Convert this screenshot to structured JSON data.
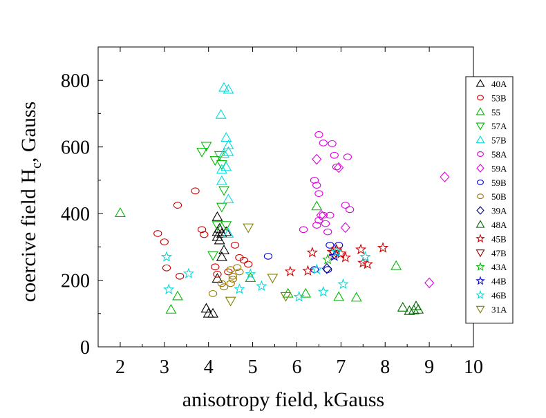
{
  "chart_data": {
    "type": "scatter",
    "xlabel": "anisotropy field, kGauss",
    "ylabel_main": "coercive field H",
    "ylabel_sub": "c",
    "ylabel_tail": ", Gauss",
    "xlim": [
      1.5,
      10
    ],
    "ylim": [
      0,
      900
    ],
    "xticks": [
      2,
      3,
      4,
      5,
      6,
      7,
      8,
      9,
      10
    ],
    "yticks": [
      0,
      200,
      400,
      600,
      800
    ],
    "grid": false,
    "legend_position": "right",
    "series": [
      {
        "name": "40A",
        "marker": "triangle-up",
        "color": "#000000",
        "points": [
          [
            4.2,
            390
          ],
          [
            4.25,
            355
          ],
          [
            4.2,
            345
          ],
          [
            4.3,
            340
          ],
          [
            4.4,
            345
          ],
          [
            4.2,
            330
          ],
          [
            4.25,
            320
          ],
          [
            4.35,
            290
          ],
          [
            4.3,
            270
          ],
          [
            4.2,
            205
          ],
          [
            3.95,
            115
          ],
          [
            4.0,
            100
          ],
          [
            4.1,
            100
          ]
        ]
      },
      {
        "name": "53B",
        "marker": "circle",
        "color": "#cc0000",
        "points": [
          [
            2.85,
            340
          ],
          [
            3.0,
            315
          ],
          [
            3.3,
            425
          ],
          [
            3.7,
            468
          ],
          [
            3.85,
            352
          ],
          [
            3.9,
            337
          ],
          [
            3.05,
            237
          ],
          [
            3.35,
            212
          ],
          [
            4.15,
            240
          ],
          [
            4.2,
            218
          ],
          [
            4.45,
            225
          ],
          [
            4.6,
            305
          ],
          [
            4.7,
            268
          ],
          [
            4.8,
            260
          ],
          [
            4.9,
            248
          ]
        ]
      },
      {
        "name": "55",
        "marker": "triangle-up",
        "color": "#00bb00",
        "points": [
          [
            2.0,
            402
          ],
          [
            3.15,
            112
          ],
          [
            3.3,
            152
          ],
          [
            4.95,
            207
          ],
          [
            5.8,
            160
          ],
          [
            6.2,
            160
          ],
          [
            6.45,
            422
          ],
          [
            6.95,
            150
          ],
          [
            7.35,
            148
          ],
          [
            8.25,
            243
          ]
        ]
      },
      {
        "name": "57A",
        "marker": "triangle-down",
        "color": "#00bb00",
        "points": [
          [
            3.85,
            585
          ],
          [
            3.95,
            603
          ],
          [
            4.15,
            560
          ],
          [
            4.25,
            575
          ],
          [
            4.3,
            548
          ],
          [
            4.35,
            470
          ],
          [
            4.3,
            420
          ],
          [
            4.2,
            365
          ],
          [
            4.4,
            365
          ],
          [
            4.1,
            275
          ]
        ]
      },
      {
        "name": "57B",
        "marker": "triangle-up",
        "color": "#00dddd",
        "points": [
          [
            4.35,
            778
          ],
          [
            4.45,
            772
          ],
          [
            4.28,
            697
          ],
          [
            4.4,
            628
          ],
          [
            4.45,
            605
          ],
          [
            4.35,
            580
          ],
          [
            4.45,
            585
          ],
          [
            4.3,
            532
          ],
          [
            4.4,
            540
          ],
          [
            4.3,
            498
          ],
          [
            4.45,
            443
          ],
          [
            4.45,
            340
          ]
        ]
      },
      {
        "name": "58A",
        "marker": "circle",
        "color": "#dd00dd",
        "points": [
          [
            6.5,
            637
          ],
          [
            6.6,
            612
          ],
          [
            6.8,
            610
          ],
          [
            6.85,
            575
          ],
          [
            7.15,
            570
          ],
          [
            6.9,
            540
          ],
          [
            6.4,
            500
          ],
          [
            6.45,
            485
          ],
          [
            6.5,
            460
          ],
          [
            7.1,
            425
          ],
          [
            7.2,
            412
          ],
          [
            6.6,
            395
          ],
          [
            6.75,
            395
          ],
          [
            6.5,
            380
          ],
          [
            6.45,
            365
          ],
          [
            6.65,
            370
          ],
          [
            6.15,
            352
          ],
          [
            6.7,
            345
          ]
        ]
      },
      {
        "name": "59A",
        "marker": "diamond",
        "color": "#dd00dd",
        "points": [
          [
            9.35,
            510
          ],
          [
            6.45,
            563
          ],
          [
            6.95,
            538
          ],
          [
            6.55,
            395
          ],
          [
            7.1,
            358
          ],
          [
            9.0,
            192
          ]
        ]
      },
      {
        "name": "59B",
        "marker": "circle",
        "color": "#0000cc",
        "points": [
          [
            5.35,
            272
          ],
          [
            6.4,
            232
          ],
          [
            6.75,
            305
          ],
          [
            6.95,
            305
          ],
          [
            6.7,
            232
          ]
        ]
      },
      {
        "name": "50B",
        "marker": "circle",
        "color": "#997700",
        "points": [
          [
            4.5,
            232
          ],
          [
            4.55,
            212
          ],
          [
            4.65,
            238
          ],
          [
            4.7,
            225
          ],
          [
            4.3,
            190
          ],
          [
            4.5,
            190
          ],
          [
            4.55,
            203
          ],
          [
            4.1,
            160
          ],
          [
            4.35,
            180
          ]
        ]
      },
      {
        "name": "39A",
        "marker": "diamond",
        "color": "#000080",
        "points": [
          [
            6.68,
            235
          ]
        ]
      },
      {
        "name": "48A",
        "marker": "triangle-up",
        "color": "#006600",
        "points": [
          [
            8.4,
            118
          ],
          [
            8.55,
            108
          ],
          [
            8.7,
            122
          ],
          [
            8.75,
            112
          ],
          [
            8.65,
            110
          ]
        ]
      },
      {
        "name": "45B",
        "marker": "star",
        "color": "#cc0000",
        "points": [
          [
            5.85,
            226
          ],
          [
            6.25,
            228
          ],
          [
            6.35,
            283
          ],
          [
            6.8,
            285
          ],
          [
            6.9,
            292
          ],
          [
            7.0,
            280
          ],
          [
            7.1,
            268
          ],
          [
            7.45,
            292
          ],
          [
            7.5,
            252
          ],
          [
            7.6,
            248
          ],
          [
            7.95,
            297
          ]
        ]
      },
      {
        "name": "47B",
        "marker": "triangle-down",
        "color": "#990000",
        "points": [
          [
            6.85,
            278
          ]
        ]
      },
      {
        "name": "43A",
        "marker": "star",
        "color": "#00bb00",
        "points": [
          [
            6.7,
            262
          ]
        ]
      },
      {
        "name": "44B",
        "marker": "star",
        "color": "#0000cc",
        "points": [
          [
            6.85,
            272
          ]
        ]
      },
      {
        "name": "46B",
        "marker": "star",
        "color": "#00dddd",
        "points": [
          [
            3.05,
            270
          ],
          [
            3.1,
            172
          ],
          [
            3.55,
            220
          ],
          [
            4.7,
            173
          ],
          [
            5.2,
            182
          ],
          [
            6.05,
            150
          ],
          [
            6.45,
            232
          ],
          [
            6.6,
            165
          ],
          [
            6.9,
            285
          ],
          [
            7.05,
            188
          ],
          [
            7.55,
            270
          ],
          [
            4.95,
            218
          ]
        ]
      },
      {
        "name": "31A",
        "marker": "triangle-down",
        "color": "#808000",
        "points": [
          [
            4.9,
            358
          ],
          [
            4.5,
            138
          ],
          [
            5.45,
            207
          ],
          [
            5.75,
            152
          ]
        ]
      }
    ]
  }
}
